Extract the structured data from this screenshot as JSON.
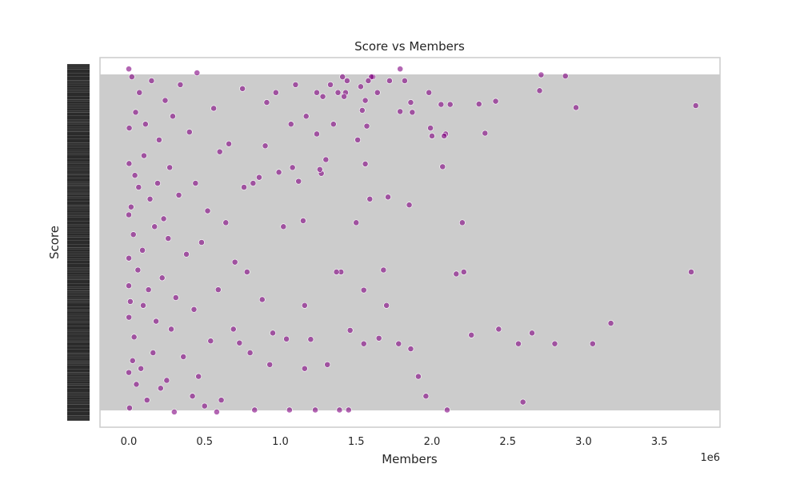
{
  "chart_data": {
    "type": "scatter",
    "title": "Score vs Members",
    "xlabel": "Members",
    "ylabel": "Score",
    "x_offset_label": "1e6",
    "xlim": [
      -190000,
      3900000
    ],
    "x_ticks": [
      0,
      500000,
      1000000,
      1500000,
      2000000,
      2500000,
      3000000,
      3500000
    ],
    "x_tick_labels": [
      "0.0",
      "0.5",
      "1.0",
      "1.5",
      "2.0",
      "2.5",
      "3.0",
      "3.5"
    ],
    "ylim": [
      1,
      10
    ],
    "y_range_fraction": [
      0.02,
      0.98
    ],
    "y_tick_count": 200,
    "y_tick_labels_note": "y tick labels are densely overlapping and illegible in the original",
    "grid": true,
    "background": "#cccccc",
    "marker_color": "#800080",
    "marker_alpha": 0.6,
    "series": [
      {
        "name": "",
        "points": [
          [
            2720000,
            9.75
          ],
          [
            2880000,
            9.72
          ],
          [
            3740000,
            8.97
          ],
          [
            3710000,
            4.75
          ],
          [
            3180000,
            3.45
          ],
          [
            3060000,
            2.93
          ],
          [
            2950000,
            8.92
          ],
          [
            2810000,
            2.93
          ],
          [
            2710000,
            9.35
          ],
          [
            2660000,
            3.2
          ],
          [
            2600000,
            1.45
          ],
          [
            2570000,
            2.93
          ],
          [
            2440000,
            3.3
          ],
          [
            2420000,
            9.08
          ],
          [
            2350000,
            8.27
          ],
          [
            2310000,
            9.01
          ],
          [
            2260000,
            3.15
          ],
          [
            2210000,
            4.75
          ],
          [
            2200000,
            6.0
          ],
          [
            2160000,
            4.7
          ],
          [
            2120000,
            9.0
          ],
          [
            2100000,
            1.25
          ],
          [
            2090000,
            8.25
          ],
          [
            2080000,
            8.2
          ],
          [
            2070000,
            7.42
          ],
          [
            2060000,
            9.0
          ],
          [
            2000000,
            8.2
          ],
          [
            1990000,
            8.4
          ],
          [
            1980000,
            9.3
          ],
          [
            1960000,
            1.6
          ],
          [
            1910000,
            2.1
          ],
          [
            1870000,
            8.8
          ],
          [
            1860000,
            9.05
          ],
          [
            1860000,
            2.8
          ],
          [
            1850000,
            6.45
          ],
          [
            1820000,
            9.6
          ],
          [
            1790000,
            8.82
          ],
          [
            1790000,
            9.9
          ],
          [
            1780000,
            2.93
          ],
          [
            1720000,
            9.6
          ],
          [
            1710000,
            6.65
          ],
          [
            1700000,
            3.9
          ],
          [
            1680000,
            4.8
          ],
          [
            1650000,
            3.07
          ],
          [
            1640000,
            9.3
          ],
          [
            1610000,
            9.7
          ],
          [
            1600000,
            9.7
          ],
          [
            1590000,
            6.6
          ],
          [
            1580000,
            9.6
          ],
          [
            1570000,
            8.45
          ],
          [
            1560000,
            7.49
          ],
          [
            1560000,
            9.1
          ],
          [
            1550000,
            4.29
          ],
          [
            1550000,
            2.93
          ],
          [
            1540000,
            8.85
          ],
          [
            1530000,
            9.45
          ],
          [
            1510000,
            8.1
          ],
          [
            1500000,
            6.0
          ],
          [
            1460000,
            3.27
          ],
          [
            1450000,
            1.25
          ],
          [
            1440000,
            9.6
          ],
          [
            1430000,
            9.3
          ],
          [
            1420000,
            9.2
          ],
          [
            1410000,
            9.7
          ],
          [
            1400000,
            4.75
          ],
          [
            1390000,
            1.25
          ],
          [
            1380000,
            9.3
          ],
          [
            1370000,
            4.75
          ],
          [
            1350000,
            8.5
          ],
          [
            1330000,
            9.5
          ],
          [
            1310000,
            2.4
          ],
          [
            1300000,
            7.6
          ],
          [
            1280000,
            9.2
          ],
          [
            1270000,
            7.25
          ],
          [
            1260000,
            7.35
          ],
          [
            1240000,
            8.25
          ],
          [
            1240000,
            9.3
          ],
          [
            1230000,
            1.25
          ],
          [
            1200000,
            3.04
          ],
          [
            1170000,
            8.7
          ],
          [
            1160000,
            2.3
          ],
          [
            1160000,
            3.9
          ],
          [
            1150000,
            6.05
          ],
          [
            1120000,
            7.05
          ],
          [
            1100000,
            9.5
          ],
          [
            1080000,
            7.4
          ],
          [
            1070000,
            8.5
          ],
          [
            1060000,
            1.25
          ],
          [
            1040000,
            3.05
          ],
          [
            1020000,
            5.9
          ],
          [
            990000,
            7.28
          ],
          [
            970000,
            9.3
          ],
          [
            950000,
            3.2
          ],
          [
            930000,
            2.4
          ],
          [
            910000,
            9.05
          ],
          [
            900000,
            7.95
          ],
          [
            880000,
            4.05
          ],
          [
            860000,
            7.15
          ],
          [
            830000,
            1.25
          ],
          [
            820000,
            7.0
          ],
          [
            800000,
            2.7
          ],
          [
            780000,
            4.75
          ],
          [
            760000,
            6.9
          ],
          [
            750000,
            9.4
          ],
          [
            730000,
            2.95
          ],
          [
            700000,
            5.0
          ],
          [
            690000,
            3.3
          ],
          [
            660000,
            8.0
          ],
          [
            640000,
            6.0
          ],
          [
            610000,
            1.5
          ],
          [
            600000,
            7.8
          ],
          [
            590000,
            4.3
          ],
          [
            580000,
            1.2
          ],
          [
            560000,
            8.9
          ],
          [
            540000,
            3.0
          ],
          [
            520000,
            6.3
          ],
          [
            500000,
            1.35
          ],
          [
            480000,
            5.5
          ],
          [
            460000,
            2.1
          ],
          [
            450000,
            9.8
          ],
          [
            440000,
            7.0
          ],
          [
            430000,
            3.8
          ],
          [
            420000,
            1.6
          ],
          [
            400000,
            8.3
          ],
          [
            380000,
            5.2
          ],
          [
            360000,
            2.6
          ],
          [
            340000,
            9.5
          ],
          [
            330000,
            6.7
          ],
          [
            310000,
            4.1
          ],
          [
            300000,
            1.2
          ],
          [
            290000,
            8.7
          ],
          [
            280000,
            3.3
          ],
          [
            270000,
            7.4
          ],
          [
            260000,
            5.6
          ],
          [
            250000,
            2.0
          ],
          [
            240000,
            9.1
          ],
          [
            230000,
            6.1
          ],
          [
            220000,
            4.6
          ],
          [
            210000,
            1.8
          ],
          [
            200000,
            8.1
          ],
          [
            190000,
            7.0
          ],
          [
            180000,
            3.5
          ],
          [
            170000,
            5.9
          ],
          [
            160000,
            2.7
          ],
          [
            150000,
            9.6
          ],
          [
            140000,
            6.6
          ],
          [
            130000,
            4.3
          ],
          [
            120000,
            1.5
          ],
          [
            110000,
            8.5
          ],
          [
            100000,
            7.7
          ],
          [
            95000,
            3.9
          ],
          [
            90000,
            5.3
          ],
          [
            80000,
            2.3
          ],
          [
            70000,
            9.3
          ],
          [
            65000,
            6.9
          ],
          [
            60000,
            4.8
          ],
          [
            50000,
            1.9
          ],
          [
            45000,
            8.8
          ],
          [
            40000,
            7.2
          ],
          [
            35000,
            3.1
          ],
          [
            30000,
            5.7
          ],
          [
            25000,
            2.5
          ],
          [
            20000,
            9.7
          ],
          [
            15000,
            6.4
          ],
          [
            10000,
            4.0
          ],
          [
            5000,
            1.3
          ],
          [
            3000,
            8.4
          ],
          [
            2000,
            7.5
          ],
          [
            1000,
            3.6
          ],
          [
            500,
            5.1
          ],
          [
            200,
            2.2
          ],
          [
            100,
            9.9
          ],
          [
            50,
            6.2
          ],
          [
            20,
            4.4
          ]
        ]
      }
    ]
  }
}
